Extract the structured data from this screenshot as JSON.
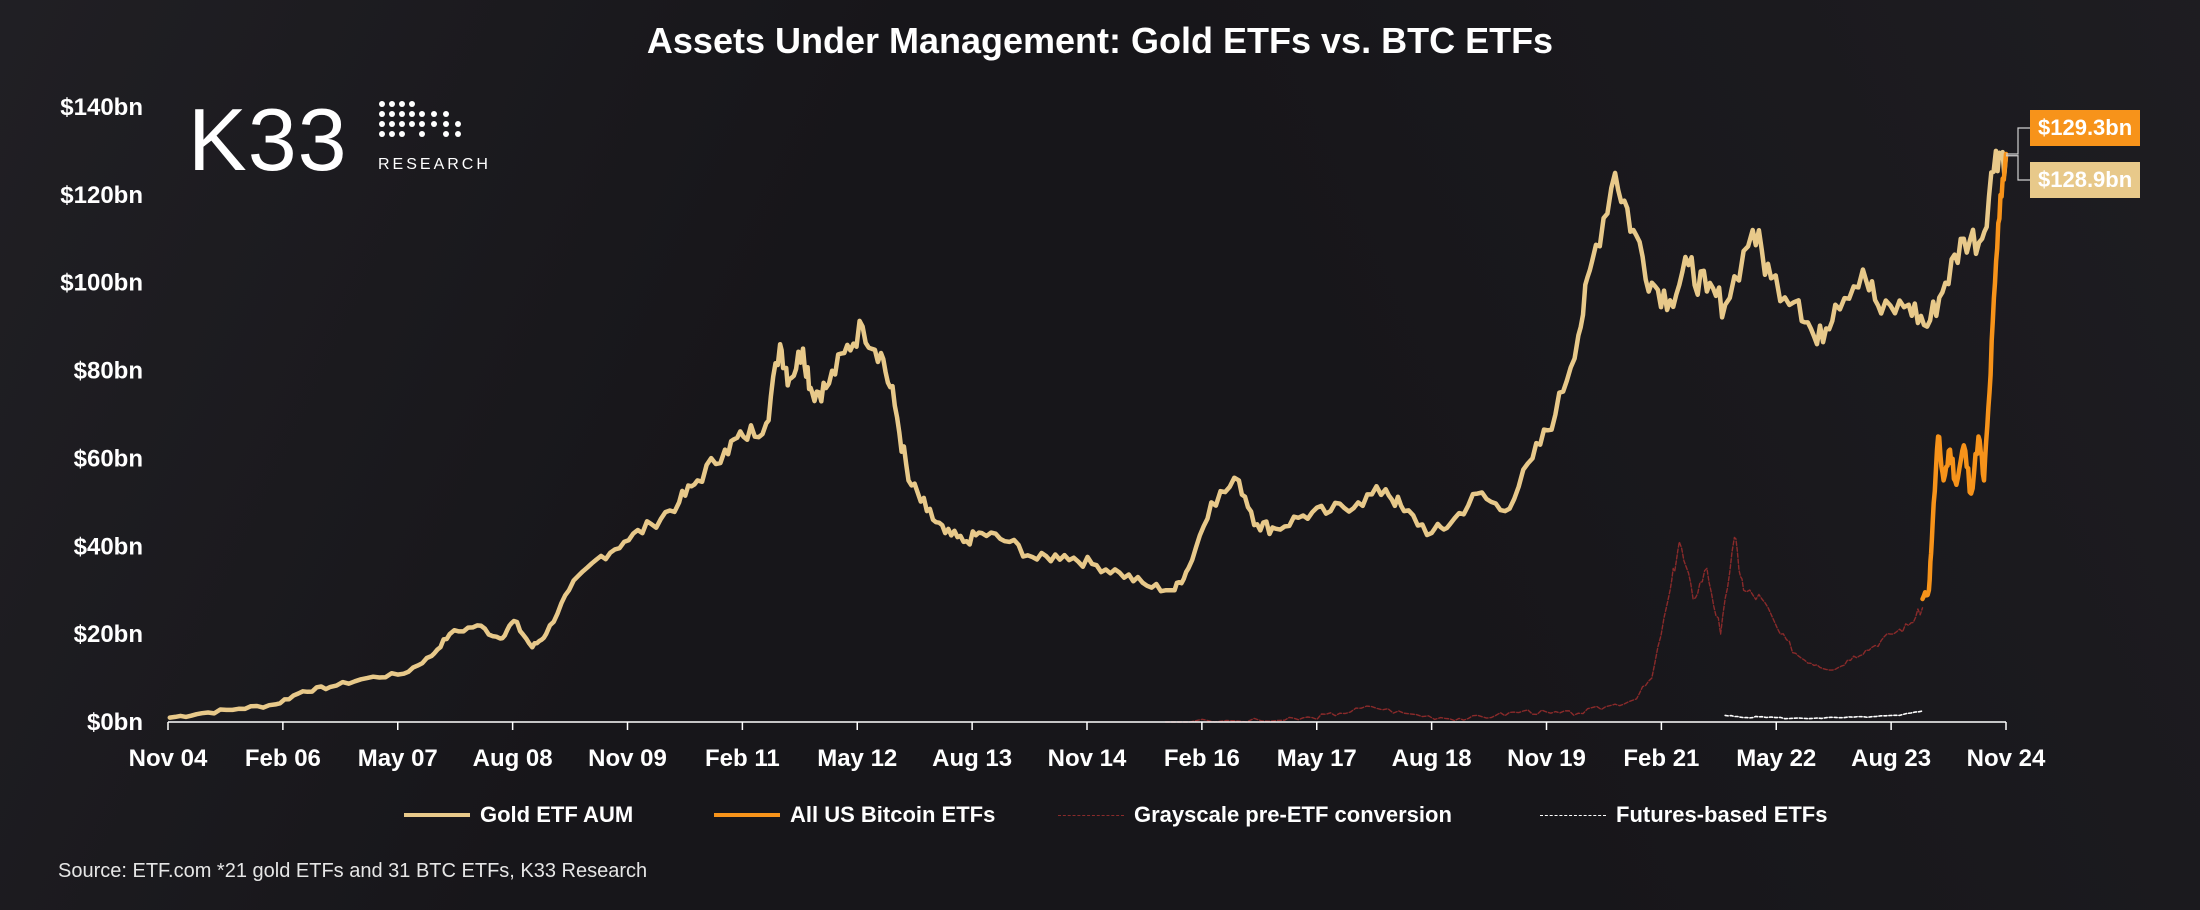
{
  "chart_data": {
    "type": "line",
    "title": "Assets Under Management: Gold ETFs vs. BTC ETFs",
    "y_tick_labels": [
      "$0bn",
      "$20bn",
      "$40bn",
      "$60bn",
      "$80bn",
      "$100bn",
      "$120bn",
      "$140bn"
    ],
    "ylim": [
      0,
      140
    ],
    "x_tick_labels": [
      "Nov 04",
      "Feb 06",
      "May 07",
      "Aug 08",
      "Nov 09",
      "Feb 11",
      "May 12",
      "Aug 13",
      "Nov 14",
      "Feb 16",
      "May 17",
      "Aug 18",
      "Nov 19",
      "Feb 21",
      "May 22",
      "Aug 23",
      "Nov 24"
    ],
    "xlim": [
      2004.83,
      2024.86
    ],
    "grid": false,
    "legend_position": "bottom",
    "series": [
      {
        "name": "Gold ETF AUM",
        "color": "#e8c98a",
        "style": "solid",
        "x": [
          2004.85,
          2005.2,
          2005.6,
          2006.0,
          2006.3,
          2006.6,
          2007.0,
          2007.4,
          2007.7,
          2007.9,
          2008.2,
          2008.45,
          2008.6,
          2008.8,
          2008.95,
          2009.2,
          2009.5,
          2009.8,
          2010.1,
          2010.4,
          2010.6,
          2010.9,
          2011.1,
          2011.35,
          2011.5,
          2011.6,
          2011.75,
          2011.85,
          2012.0,
          2012.2,
          2012.4,
          2012.6,
          2012.75,
          2012.9,
          2013.1,
          2013.3,
          2013.5,
          2013.7,
          2014.0,
          2014.3,
          2014.6,
          2014.9,
          2015.2,
          2015.5,
          2015.8,
          2015.95,
          2016.2,
          2016.5,
          2016.7,
          2016.9,
          2017.2,
          2017.5,
          2017.8,
          2018.1,
          2018.3,
          2018.6,
          2018.8,
          2019.1,
          2019.4,
          2019.7,
          2019.95,
          2020.2,
          2020.35,
          2020.6,
          2020.8,
          2021.0,
          2021.2,
          2021.4,
          2021.6,
          2021.8,
          2022.1,
          2022.3,
          2022.6,
          2022.8,
          2023.0,
          2023.3,
          2023.5,
          2023.8,
          2024.0,
          2024.2,
          2024.4,
          2024.6,
          2024.75,
          2024.86
        ],
        "values": [
          1,
          2,
          3,
          4,
          7,
          8,
          10,
          11,
          15,
          20,
          22,
          19,
          23,
          17,
          20,
          30,
          37,
          41,
          45,
          50,
          55,
          62,
          65,
          68,
          86,
          78,
          85,
          75,
          76,
          84,
          90,
          84,
          72,
          55,
          48,
          43,
          41,
          43,
          41,
          37,
          38,
          36,
          34,
          31,
          30,
          35,
          50,
          55,
          45,
          44,
          47,
          48,
          50,
          53,
          48,
          43,
          45,
          52,
          48,
          60,
          70,
          88,
          105,
          125,
          112,
          100,
          96,
          104,
          98,
          95,
          112,
          101,
          96,
          86,
          95,
          103,
          93,
          95,
          90,
          100,
          110,
          110,
          130,
          128.9
        ]
      },
      {
        "name": "All US Bitcoin ETFs",
        "color": "#f7931a",
        "style": "solid",
        "x": [
          2023.95,
          2024.02,
          2024.06,
          2024.12,
          2024.18,
          2024.25,
          2024.32,
          2024.4,
          2024.48,
          2024.56,
          2024.62,
          2024.68,
          2024.74,
          2024.8,
          2024.86
        ],
        "values": [
          28,
          30,
          45,
          65,
          55,
          62,
          54,
          63,
          52,
          65,
          55,
          75,
          100,
          120,
          129.3
        ]
      },
      {
        "name": "Grayscale pre-ETF conversion",
        "color": "#8a2a2a",
        "style": "dashed",
        "x": [
          2015.7,
          2016.5,
          2017.0,
          2017.3,
          2017.6,
          2017.95,
          2018.3,
          2018.7,
          2019.0,
          2019.3,
          2019.6,
          2019.9,
          2020.2,
          2020.5,
          2020.8,
          2021.0,
          2021.2,
          2021.3,
          2021.45,
          2021.6,
          2021.75,
          2021.9,
          2022.0,
          2022.2,
          2022.4,
          2022.6,
          2022.8,
          2023.0,
          2023.2,
          2023.4,
          2023.6,
          2023.8,
          2023.95
        ],
        "values": [
          0,
          0.2,
          0.4,
          1,
          2,
          3.5,
          2,
          1,
          0.8,
          1.5,
          2.5,
          2,
          2,
          3.5,
          5,
          10,
          30,
          41,
          28,
          35,
          20,
          42,
          30,
          28,
          20,
          15,
          13,
          12,
          15,
          17,
          20,
          22,
          26
        ]
      },
      {
        "name": "Futures-based ETFs",
        "color": "#ffffff",
        "style": "dashed",
        "x": [
          2021.8,
          2022.0,
          2022.2,
          2022.5,
          2022.8,
          2023.1,
          2023.4,
          2023.7,
          2023.95
        ],
        "values": [
          1.5,
          1.0,
          1.2,
          0.8,
          0.9,
          1.0,
          1.2,
          1.5,
          2.5
        ]
      }
    ],
    "end_labels": [
      {
        "text": "$129.3bn",
        "series": "All US Bitcoin ETFs",
        "value": 129.3,
        "color": "#f7931a"
      },
      {
        "text": "$128.9bn",
        "series": "Gold ETF AUM",
        "value": 128.9,
        "color": "#e8c98a"
      }
    ]
  },
  "logo": {
    "brand": "K33",
    "sub": "RESEARCH"
  },
  "legend": [
    {
      "label": "Gold ETF AUM",
      "color": "#e8c98a",
      "style": "solid"
    },
    {
      "label": "All US Bitcoin ETFs",
      "color": "#f7931a",
      "style": "solid"
    },
    {
      "label": "Grayscale pre-ETF conversion",
      "color": "#8a2a2a",
      "style": "dashed"
    },
    {
      "label": "Futures-based ETFs",
      "color": "#ffffff",
      "style": "dashed"
    }
  ],
  "source": "Source: ETF.com *21 gold ETFs and 31 BTC ETFs, K33 Research"
}
